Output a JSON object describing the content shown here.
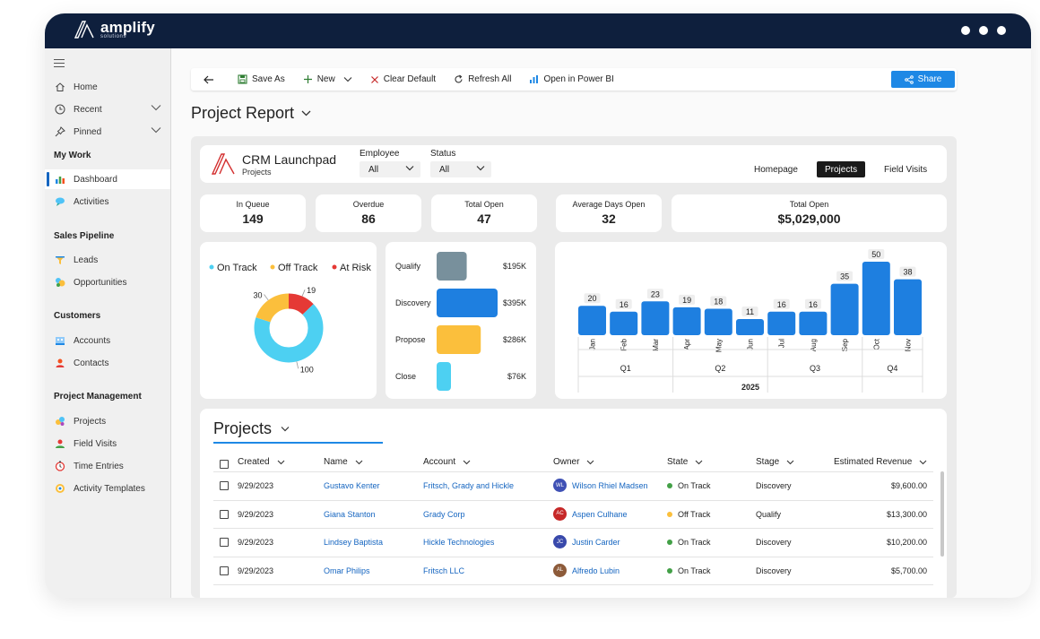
{
  "brand": {
    "name": "amplify",
    "sub": "solutions"
  },
  "sidebar": {
    "items": [
      {
        "label": "Home"
      },
      {
        "label": "Recent"
      },
      {
        "label": "Pinned"
      }
    ],
    "sections": [
      {
        "title": "My Work",
        "items": [
          "Dashboard",
          "Activities"
        ]
      },
      {
        "title": "Sales Pipeline",
        "items": [
          "Leads",
          "Opportunities"
        ]
      },
      {
        "title": "Customers",
        "items": [
          "Accounts",
          "Contacts"
        ]
      },
      {
        "title": "Project Management",
        "items": [
          "Projects",
          "Field Visits",
          "Time Entries",
          "Activity Templates"
        ]
      }
    ]
  },
  "commandbar": {
    "save_as": "Save As",
    "new": "New",
    "clear_default": "Clear Default",
    "refresh_all": "Refresh All",
    "open_power_bi": "Open in Power BI",
    "share": "Share"
  },
  "page_title": "Project Report",
  "dashboard": {
    "header": {
      "title": "CRM Launchpad",
      "subtitle": "Projects",
      "filters": [
        {
          "label": "Employee",
          "value": "All"
        },
        {
          "label": "Status",
          "value": "All"
        }
      ],
      "tabs": [
        "Homepage",
        "Projects",
        "Field Visits"
      ],
      "active_tab": "Projects"
    },
    "kpis": [
      {
        "label": "In Queue",
        "value": "149"
      },
      {
        "label": "Overdue",
        "value": "86"
      },
      {
        "label": "Total Open",
        "value": "47"
      },
      {
        "label": "Average Days Open",
        "value": "32"
      },
      {
        "label": "Total Open",
        "value": "$5,029,000"
      }
    ]
  },
  "chart_data": [
    {
      "type": "pie",
      "donut": true,
      "legend": [
        "On Track",
        "Off Track",
        "At Risk"
      ],
      "labels": [
        "On Track",
        "Off Track",
        "At Risk"
      ],
      "values": [
        100,
        30,
        19
      ],
      "value_labels": [
        "100",
        "30",
        "19"
      ],
      "colors": [
        "#4dd0f2",
        "#fbbf3c",
        "#e53935"
      ]
    },
    {
      "type": "bar",
      "orientation": "horizontal",
      "categories": [
        "Qualify",
        "Discovery",
        "Propose",
        "Close"
      ],
      "values": [
        195,
        395,
        286,
        76
      ],
      "value_labels": [
        "$195K",
        "$395K",
        "$286K",
        "$76K"
      ],
      "colors": [
        "#78909c",
        "#1e7fe0",
        "#fbbf3c",
        "#4dd0f2"
      ]
    },
    {
      "type": "bar",
      "categories": [
        "Jan",
        "Feb",
        "Mar",
        "Apr",
        "May",
        "Jun",
        "Jul",
        "Aug",
        "Sep",
        "Oct",
        "Nov"
      ],
      "values": [
        20,
        16,
        23,
        19,
        18,
        11,
        16,
        16,
        35,
        50,
        38
      ],
      "quarters": [
        "Q1",
        "Q2",
        "Q3",
        "Q4"
      ],
      "year": "2025",
      "color": "#1e7fe0"
    }
  ],
  "projects": {
    "title": "Projects",
    "columns": [
      "Created",
      "Name",
      "Account",
      "Owner",
      "State",
      "Stage",
      "Estimated Revenue"
    ],
    "rows": [
      {
        "created": "9/29/2023",
        "name": "Gustavo Kenter",
        "account": "Fritsch, Grady and Hickle",
        "owner_initials": "WL",
        "owner": "Wilson Rhiel Madsen",
        "owner_color": "#3f51b5",
        "state": "On Track",
        "state_color": "#43a047",
        "stage": "Discovery",
        "revenue": "$9,600.00"
      },
      {
        "created": "9/29/2023",
        "name": "Giana Stanton",
        "account": "Grady Corp",
        "owner_initials": "AC",
        "owner": "Aspen Culhane",
        "owner_color": "#c62828",
        "state": "Off Track",
        "state_color": "#fbbf3c",
        "stage": "Qualify",
        "revenue": "$13,300.00"
      },
      {
        "created": "9/29/2023",
        "name": "Lindsey Baptista",
        "account": "Hickle Technologies",
        "owner_initials": "JC",
        "owner": "Justin Carder",
        "owner_color": "#3949ab",
        "state": "On Track",
        "state_color": "#43a047",
        "stage": "Discovery",
        "revenue": "$10,200.00"
      },
      {
        "created": "9/29/2023",
        "name": "Omar Philips",
        "account": "Fritsch LLC",
        "owner_initials": "AL",
        "owner": "Alfredo Lubin",
        "owner_color": "#8d5b3a",
        "state": "On Track",
        "state_color": "#43a047",
        "stage": "Discovery",
        "revenue": "$5,700.00"
      }
    ]
  }
}
